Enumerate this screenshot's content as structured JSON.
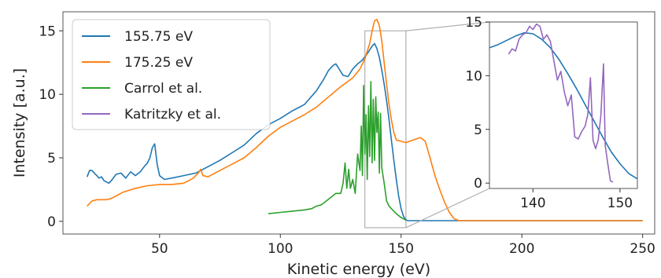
{
  "colors": {
    "blue": "#1f77b4",
    "orange": "#ff7f0e",
    "green": "#2ca02c",
    "purple": "#9467bd",
    "frame": "#555555",
    "zoom_box": "#b0b0b0"
  },
  "chart_data": [
    {
      "type": "line",
      "xlabel": "Kinetic energy (eV)",
      "ylabel": "Intensity [a.u.]",
      "xlim": [
        10,
        255
      ],
      "ylim": [
        -1,
        16.5
      ],
      "xticks": [
        "50",
        "100",
        "150",
        "200",
        "250"
      ],
      "yticks": [
        "0",
        "5",
        "10",
        "15"
      ],
      "grid": false,
      "legend_position": "top-left",
      "series": [
        {
          "name": "155.75 eV",
          "color": "#1f77b4",
          "x": [
            20,
            21,
            22,
            23,
            24,
            25,
            26,
            27,
            28,
            29,
            30,
            32,
            34,
            36,
            38,
            40,
            42,
            44,
            45,
            46,
            47,
            48,
            49,
            50,
            52,
            55,
            60,
            65,
            70,
            75,
            80,
            85,
            90,
            95,
            100,
            105,
            110,
            115,
            118,
            120,
            122,
            123,
            124,
            126,
            128,
            130,
            132,
            134,
            136,
            138,
            139,
            140,
            141,
            142,
            143,
            144,
            145,
            146,
            147,
            148,
            149,
            150,
            151,
            152,
            153,
            160,
            180,
            200,
            220,
            250
          ],
          "y": [
            3.5,
            4.0,
            4.0,
            3.8,
            3.6,
            3.4,
            3.5,
            3.2,
            3.1,
            3.0,
            3.2,
            3.7,
            3.8,
            3.4,
            3.9,
            3.6,
            3.9,
            4.4,
            4.6,
            5.0,
            5.8,
            6.1,
            4.5,
            3.6,
            3.3,
            3.4,
            3.6,
            3.8,
            4.3,
            4.8,
            5.4,
            6.0,
            6.9,
            7.6,
            8.1,
            8.7,
            9.2,
            10.3,
            11.2,
            11.9,
            12.3,
            12.4,
            12.1,
            11.5,
            11.4,
            12.0,
            12.4,
            12.7,
            13.2,
            13.8,
            14.0,
            13.6,
            12.9,
            11.9,
            10.8,
            9.5,
            8.0,
            6.4,
            4.8,
            3.3,
            2.0,
            1.0,
            0.4,
            0.1,
            0.05,
            0.05,
            0.05,
            0.05,
            0.05,
            0.05
          ]
        },
        {
          "name": "175.25 eV",
          "color": "#ff7f0e",
          "x": [
            20,
            22,
            24,
            26,
            28,
            30,
            32,
            35,
            40,
            45,
            50,
            55,
            60,
            64,
            66,
            67,
            68,
            70,
            75,
            80,
            85,
            90,
            95,
            100,
            105,
            110,
            115,
            120,
            125,
            130,
            133,
            135,
            137,
            138,
            139,
            140,
            141,
            142,
            143,
            144,
            145,
            146,
            147,
            148,
            150,
            152,
            155,
            158,
            160,
            162,
            164,
            166,
            168,
            170,
            172,
            174,
            180,
            200,
            220,
            250
          ],
          "y": [
            1.2,
            1.6,
            1.7,
            1.7,
            1.7,
            1.8,
            2.0,
            2.3,
            2.6,
            2.8,
            2.9,
            2.9,
            3.0,
            3.4,
            3.8,
            4.1,
            3.6,
            3.5,
            4.0,
            4.5,
            5.0,
            5.8,
            6.7,
            7.4,
            7.9,
            8.4,
            9.0,
            9.8,
            10.6,
            11.3,
            12.0,
            12.8,
            14.0,
            15.0,
            15.8,
            15.9,
            15.4,
            14.2,
            12.5,
            10.8,
            9.2,
            8.0,
            7.0,
            6.4,
            6.3,
            6.2,
            6.4,
            6.6,
            6.3,
            5.0,
            3.6,
            2.5,
            1.5,
            0.7,
            0.2,
            0.05,
            0.05,
            0.05,
            0.05,
            0.05
          ]
        },
        {
          "name": "Carrol et al.",
          "color": "#2ca02c",
          "x": [
            95,
            100,
            105,
            110,
            113,
            115,
            117,
            119,
            121,
            123,
            125,
            126,
            126.8,
            127.5,
            128.3,
            129,
            130,
            131,
            132,
            133,
            133.5,
            134,
            134.5,
            135,
            135.5,
            136,
            136.5,
            137,
            137.5,
            138,
            138.5,
            139,
            139.5,
            140,
            140.5,
            141,
            141.5,
            142,
            143,
            144,
            145,
            146,
            147,
            148,
            150,
            152
          ],
          "y": [
            0.6,
            0.7,
            0.8,
            0.9,
            1.0,
            1.2,
            1.3,
            1.6,
            1.9,
            2.2,
            2.2,
            3.0,
            4.6,
            2.6,
            4.1,
            2.6,
            3.3,
            2.2,
            5.3,
            4.0,
            7.5,
            3.6,
            10.7,
            5.3,
            8.4,
            3.3,
            9.1,
            5.1,
            11.0,
            4.6,
            9.6,
            4.8,
            9.8,
            7.0,
            8.6,
            3.8,
            8.5,
            4.2,
            3.0,
            1.6,
            1.2,
            1.0,
            0.8,
            0.6,
            0.3,
            0.1
          ]
        }
      ]
    },
    {
      "type": "line",
      "xlim": [
        135,
        152
      ],
      "ylim": [
        -0.5,
        15
      ],
      "xticks": [
        "140",
        "150"
      ],
      "yticks": [
        "0",
        "5",
        "10",
        "15"
      ],
      "grid": false,
      "series": [
        {
          "name": "155.75 eV",
          "color": "#1f77b4",
          "x": [
            135,
            136,
            137,
            138,
            139,
            140,
            141,
            142,
            143,
            144,
            145,
            146,
            147,
            148,
            149,
            150,
            151,
            152
          ],
          "y": [
            12.6,
            12.9,
            13.3,
            13.7,
            14.0,
            13.9,
            13.4,
            12.6,
            11.5,
            10.2,
            8.8,
            7.3,
            5.8,
            4.3,
            2.9,
            1.8,
            0.9,
            0.4
          ]
        },
        {
          "name": "Katritzky et al.",
          "color": "#9467bd",
          "x": [
            137.2,
            137.6,
            138,
            138.4,
            138.8,
            139.2,
            139.6,
            140,
            140.4,
            140.8,
            141.2,
            141.6,
            142,
            142.4,
            142.8,
            143.2,
            143.6,
            144,
            144.4,
            144.8,
            145.2,
            145.6,
            146,
            146.3,
            146.6,
            146.9,
            147.2,
            147.5,
            147.8,
            148.1,
            148.3,
            148.6,
            148.9,
            149.2
          ],
          "y": [
            12.0,
            12.5,
            12.3,
            13.4,
            13.8,
            14.0,
            14.6,
            14.3,
            14.8,
            14.6,
            13.4,
            13.8,
            13.2,
            11.4,
            9.6,
            10.4,
            8.5,
            7.2,
            8.2,
            4.3,
            4.1,
            4.8,
            5.3,
            6.4,
            9.8,
            4.0,
            3.2,
            4.0,
            6.3,
            11.1,
            3.5,
            1.8,
            0.2,
            0.1
          ]
        }
      ]
    }
  ]
}
